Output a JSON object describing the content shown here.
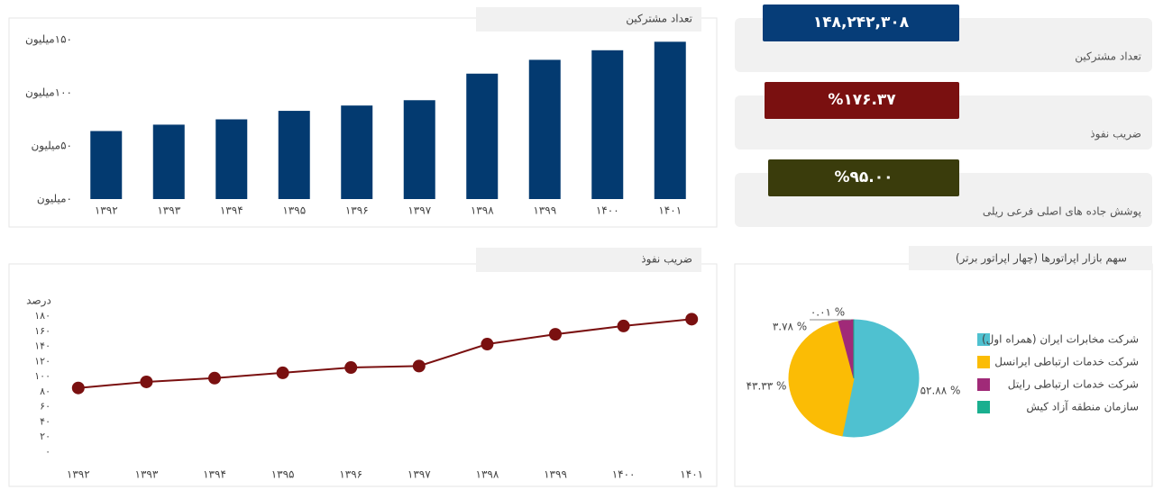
{
  "kpis": [
    {
      "title": "تعداد مشترکین",
      "value": "۱۴۸,۲۴۲,۳۰۸",
      "color": "#063d78"
    },
    {
      "title": "ضریب نفوذ",
      "value": "%۱۷۶.۳۷",
      "color": "#7a1010"
    },
    {
      "title": "پوشش جاده های اصلی فرعی ریلی",
      "value": "%۹۵.۰۰",
      "color": "#3a3c0c"
    }
  ],
  "chart_data": [
    {
      "type": "bar",
      "title": "تعداد مشترکین",
      "categories": [
        "۱۳۹۲",
        "۱۳۹۳",
        "۱۳۹۴",
        "۱۳۹۵",
        "۱۳۹۶",
        "۱۳۹۷",
        "۱۳۹۸",
        "۱۳۹۹",
        "۱۴۰۰",
        "۱۴۰۱"
      ],
      "values": [
        64,
        70,
        75,
        83,
        88,
        93,
        118,
        131,
        140,
        148
      ],
      "color": "#033a70",
      "ylim": [
        0,
        150
      ],
      "yticks": [
        {
          "value": 0,
          "label": "۰میلیون"
        },
        {
          "value": 50,
          "label": "۵۰میلیون"
        },
        {
          "value": 100,
          "label": "۱۰۰میلیون"
        },
        {
          "value": 150,
          "label": "۱۵۰میلیون"
        }
      ]
    },
    {
      "type": "line",
      "title": "ضریب نفوذ",
      "y_label": "درصد",
      "categories": [
        "۱۳۹۲",
        "۱۳۹۳",
        "۱۳۹۴",
        "۱۳۹۵",
        "۱۳۹۶",
        "۱۳۹۷",
        "۱۳۹۸",
        "۱۳۹۹",
        "۱۴۰۰",
        "۱۴۰۱"
      ],
      "values": [
        85,
        93,
        98,
        105,
        112,
        114,
        143,
        156,
        167,
        176
      ],
      "color": "#7a1010",
      "ylim": [
        0,
        180
      ],
      "yticks": [
        {
          "value": 0,
          "label": "۰"
        },
        {
          "value": 20,
          "label": "۲۰"
        },
        {
          "value": 40,
          "label": "۴۰"
        },
        {
          "value": 60,
          "label": "۶۰"
        },
        {
          "value": 80,
          "label": "۸۰"
        },
        {
          "value": 100,
          "label": "۱۰۰"
        },
        {
          "value": 120,
          "label": "۱۲۰"
        },
        {
          "value": 140,
          "label": "۱۴۰"
        },
        {
          "value": 160,
          "label": "۱۶۰"
        },
        {
          "value": 180,
          "label": "۱۸۰"
        }
      ]
    },
    {
      "type": "pie",
      "title": "سهم بازار اپراتورها (چهار اپراتور برتر)",
      "categories": [
        "شرکت مخابرات ایران (همراه اول)",
        "شرکت خدمات ارتباطی ایرانسل",
        "شرکت خدمات ارتباطی رایتل",
        "سازمان منطقه آزاد کیش"
      ],
      "values": [
        52.88,
        43.33,
        3.78,
        0.01
      ],
      "value_labels": [
        "% ۵۲.۸۸",
        "% ۴۳.۳۳",
        "% ۳.۷۸",
        "% ۰.۰۱"
      ],
      "colors": [
        "#4fc1d0",
        "#fbbc05",
        "#a02a78",
        "#1aaf8f"
      ]
    }
  ]
}
